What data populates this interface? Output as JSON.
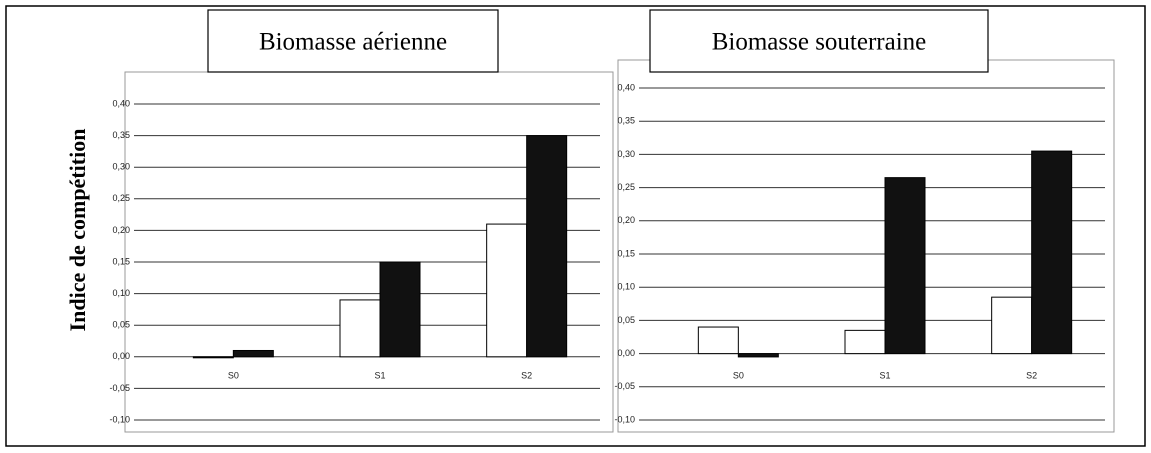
{
  "chart_data": [
    {
      "type": "bar",
      "title": "Biomasse aérienne",
      "ylabel": "Indice de compétition",
      "categories": [
        "S0",
        "S1",
        "S2"
      ],
      "series": [
        {
          "color": "#ffffff",
          "values": [
            0.0,
            0.09,
            0.21
          ]
        },
        {
          "color": "#111111",
          "values": [
            0.01,
            0.15,
            0.35
          ]
        }
      ],
      "ylim": [
        -0.1,
        0.4
      ],
      "yticks": [
        {
          "value": -0.1,
          "label": "-0,10"
        },
        {
          "value": -0.05,
          "label": "-0,05"
        },
        {
          "value": 0,
          "label": "0,00"
        },
        {
          "value": 0.05,
          "label": "0,05"
        },
        {
          "value": 0.1,
          "label": "0,10"
        },
        {
          "value": 0.15,
          "label": "0,15"
        },
        {
          "value": 0.2,
          "label": "0,20"
        },
        {
          "value": 0.25,
          "label": "0,25"
        },
        {
          "value": 0.3,
          "label": "0,30"
        },
        {
          "value": 0.35,
          "label": "0,35"
        },
        {
          "value": 0.4,
          "label": "0,40"
        }
      ],
      "grid": true
    },
    {
      "type": "bar",
      "title": "Biomasse souterraine",
      "categories": [
        "S0",
        "S1",
        "S2"
      ],
      "series": [
        {
          "color": "#ffffff",
          "values": [
            0.04,
            0.035,
            0.085
          ]
        },
        {
          "color": "#111111",
          "values": [
            -0.005,
            0.265,
            0.305
          ]
        }
      ],
      "ylim": [
        -0.1,
        0.4
      ],
      "yticks": [
        {
          "value": -0.1,
          "label": "-0,10"
        },
        {
          "value": -0.05,
          "label": "-0,05"
        },
        {
          "value": 0,
          "label": "0,00"
        },
        {
          "value": 0.05,
          "label": "0,05"
        },
        {
          "value": 0.1,
          "label": "0,10"
        },
        {
          "value": 0.15,
          "label": "0,15"
        },
        {
          "value": 0.2,
          "label": "0,20"
        },
        {
          "value": 0.25,
          "label": "0,25"
        },
        {
          "value": 0.3,
          "label": "0,30"
        },
        {
          "value": 0.35,
          "label": "0,35"
        },
        {
          "value": 0.4,
          "label": "0,40"
        }
      ],
      "grid": true
    }
  ]
}
